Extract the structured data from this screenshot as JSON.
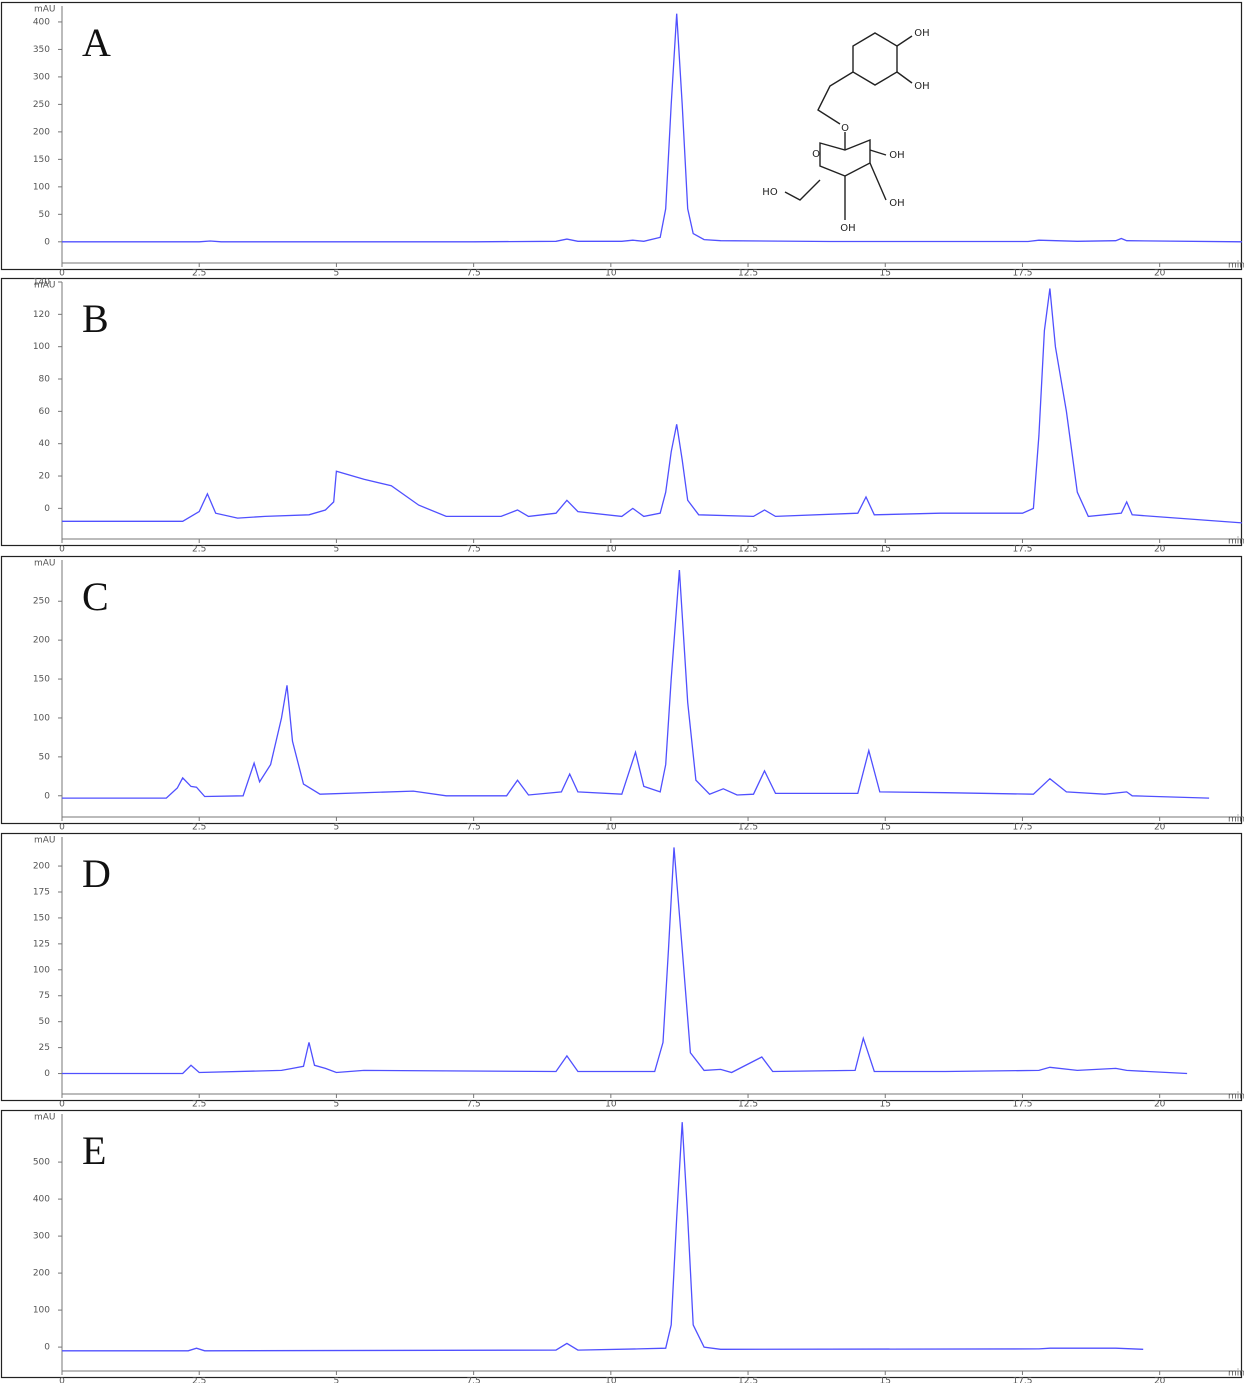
{
  "chart_data": [
    {
      "type": "line",
      "label": "A",
      "y_label": "mAU",
      "x_label": "min",
      "color": "#5050ff",
      "structure_labels": [
        "OH",
        "OH",
        "O",
        "O",
        "OH",
        "HO",
        "OH",
        "OH"
      ],
      "xlim": [
        0,
        21.5
      ],
      "xticks": [
        0,
        2.5,
        5,
        7.5,
        10,
        12.5,
        15,
        17.5,
        20
      ],
      "ylim": [
        -24,
        429
      ],
      "yticks": [
        0,
        50,
        100,
        150,
        200,
        250,
        300,
        350,
        400
      ],
      "x": [
        0,
        2.5,
        2.7,
        2.9,
        5,
        7.5,
        9.0,
        9.2,
        9.4,
        10.2,
        10.4,
        10.6,
        10.9,
        11.0,
        11.1,
        11.2,
        11.3,
        11.4,
        11.5,
        11.7,
        12,
        14,
        17.6,
        17.8,
        18.5,
        19.2,
        19.3,
        19.4,
        21.5
      ],
      "values": [
        0,
        0,
        1.5,
        0,
        0,
        0,
        1,
        5,
        1,
        1,
        3,
        1,
        8,
        60,
        250,
        415,
        250,
        60,
        15,
        4,
        2,
        0.5,
        0.5,
        3,
        1,
        2,
        6,
        2,
        0
      ]
    },
    {
      "type": "line",
      "label": "B",
      "y_label": "mAU",
      "x_label": "min",
      "color": "#5050ff",
      "xlim": [
        0,
        21.5
      ],
      "xticks": [
        0,
        2.5,
        5,
        7.5,
        10,
        12.5,
        15,
        17.5,
        20
      ],
      "ylim": [
        -14,
        140
      ],
      "yticks": [
        0,
        20,
        40,
        60,
        80,
        100,
        120,
        140
      ],
      "x": [
        0,
        2.2,
        2.5,
        2.65,
        2.8,
        3.2,
        3.7,
        4.5,
        4.8,
        4.95,
        5.0,
        5.5,
        6.0,
        6.5,
        7.0,
        8.0,
        8.3,
        8.5,
        9.0,
        9.2,
        9.4,
        10.2,
        10.4,
        10.6,
        10.9,
        11.0,
        11.1,
        11.2,
        11.3,
        11.4,
        11.6,
        12.6,
        12.8,
        13.0,
        14.5,
        14.65,
        14.8,
        16,
        17.5,
        17.7,
        17.8,
        17.9,
        18.0,
        18.1,
        18.3,
        18.5,
        18.7,
        19.3,
        19.4,
        19.5,
        21.5
      ],
      "values": [
        -8,
        -8,
        -2,
        9,
        -3,
        -6,
        -5,
        -4,
        -1,
        4,
        23,
        18,
        14,
        2,
        -5,
        -5,
        -1,
        -5,
        -3,
        5,
        -2,
        -5,
        0,
        -5,
        -3,
        10,
        35,
        52,
        30,
        5,
        -4,
        -5,
        -1,
        -5,
        -3,
        7,
        -4,
        -3,
        -3,
        0,
        45,
        110,
        136,
        100,
        60,
        10,
        -5,
        -3,
        4,
        -4,
        -9
      ]
    },
    {
      "type": "line",
      "label": "C",
      "y_label": "mAU",
      "x_label": "min",
      "color": "#5050ff",
      "xlim": [
        0,
        21.5
      ],
      "xticks": [
        0,
        2.5,
        5,
        7.5,
        10,
        12.5,
        15,
        17.5,
        20
      ],
      "ylim": [
        -17,
        303
      ],
      "yticks": [
        0,
        50,
        100,
        150,
        200,
        250
      ],
      "x": [
        0,
        1.9,
        2.1,
        2.2,
        2.35,
        2.45,
        2.6,
        3.3,
        3.5,
        3.6,
        3.8,
        4.0,
        4.1,
        4.2,
        4.4,
        4.7,
        6.4,
        7,
        8.1,
        8.3,
        8.5,
        9.1,
        9.25,
        9.4,
        10.2,
        10.45,
        10.6,
        10.9,
        11.0,
        11.1,
        11.25,
        11.4,
        11.55,
        11.8,
        12.05,
        12.3,
        12.6,
        12.8,
        13.0,
        14.5,
        14.7,
        14.9,
        16.1,
        17.7,
        18.0,
        18.3,
        19.0,
        19.4,
        19.5,
        20.9
      ],
      "values": [
        -3,
        -3,
        10,
        23,
        12,
        11,
        -1,
        0,
        42,
        18,
        40,
        100,
        142,
        70,
        15,
        2,
        6,
        0,
        0,
        20,
        1,
        5,
        28,
        5,
        2,
        56,
        12,
        5,
        40,
        150,
        290,
        120,
        20,
        2,
        9,
        1,
        2,
        32,
        3,
        3,
        58,
        5,
        4,
        2,
        22,
        5,
        2,
        5,
        0,
        -3
      ]
    },
    {
      "type": "line",
      "label": "D",
      "y_label": "mAU",
      "x_label": "min",
      "color": "#5050ff",
      "xlim": [
        0,
        21.5
      ],
      "xticks": [
        0,
        2.5,
        5,
        7.5,
        10,
        12.5,
        15,
        17.5,
        20
      ],
      "ylim": [
        -12,
        228
      ],
      "yticks": [
        0,
        25,
        50,
        75,
        100,
        125,
        150,
        175,
        200
      ],
      "x": [
        0,
        2.2,
        2.35,
        2.5,
        4.0,
        4.2,
        4.4,
        4.5,
        4.6,
        4.8,
        5.0,
        5.5,
        9.0,
        9.2,
        9.4,
        10.8,
        10.95,
        11.05,
        11.15,
        11.3,
        11.45,
        11.7,
        12.0,
        12.2,
        12.75,
        12.95,
        14.45,
        14.6,
        14.8,
        16.1,
        17.8,
        18.0,
        18.5,
        19.2,
        19.4,
        20.5
      ],
      "values": [
        0,
        0,
        8,
        1,
        3,
        5,
        7,
        30,
        8,
        5,
        1,
        3,
        2,
        17,
        2,
        2,
        30,
        120,
        218,
        120,
        20,
        3,
        4,
        1,
        16,
        2,
        3,
        34,
        2,
        2,
        3,
        6,
        3,
        5,
        3,
        0
      ]
    },
    {
      "type": "line",
      "label": "E",
      "y_label": "mAU",
      "x_label": "min",
      "color": "#5050ff",
      "xlim": [
        0,
        21.5
      ],
      "xticks": [
        0,
        2.5,
        5,
        7.5,
        10,
        12.5,
        15,
        17.5,
        20
      ],
      "ylim": [
        -43,
        630
      ],
      "yticks": [
        0,
        100,
        200,
        300,
        400,
        500
      ],
      "x": [
        0,
        2.3,
        2.45,
        2.6,
        9.0,
        9.2,
        9.4,
        10.5,
        11.0,
        11.1,
        11.2,
        11.3,
        11.4,
        11.5,
        11.7,
        12,
        17.8,
        18.0,
        19.2,
        19.7
      ],
      "values": [
        -10,
        -10,
        -3,
        -10,
        -8,
        10,
        -8,
        -5,
        -3,
        60,
        350,
        608,
        350,
        60,
        0,
        -6,
        -5,
        -3,
        -3,
        -6
      ]
    }
  ]
}
